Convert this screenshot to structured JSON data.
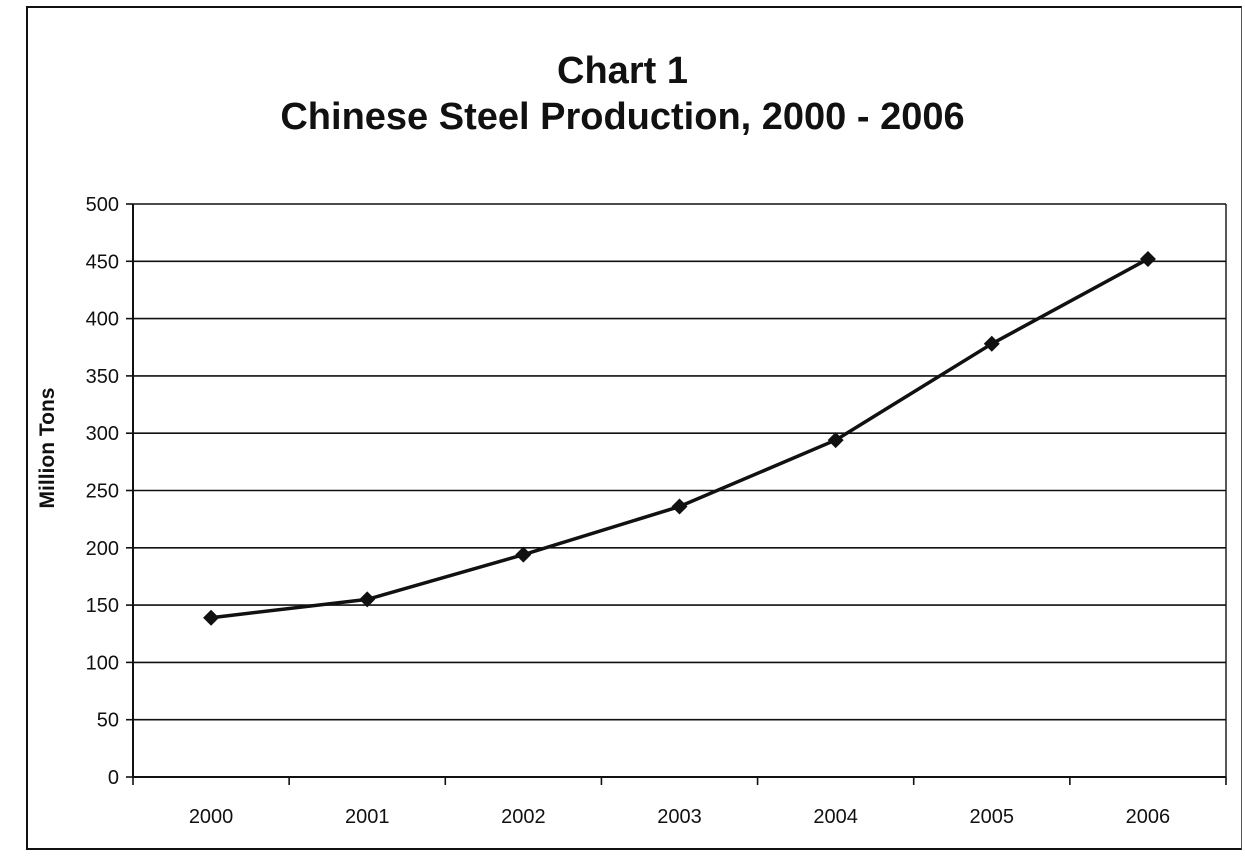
{
  "chart_data": {
    "type": "line",
    "title": "Chart 1",
    "subtitle": "Chinese Steel Production, 2000 - 2006",
    "xlabel": "",
    "ylabel": "Million Tons",
    "categories": [
      "2000",
      "2001",
      "2002",
      "2003",
      "2004",
      "2005",
      "2006"
    ],
    "series": [
      {
        "values": [
          139,
          155,
          194,
          236,
          294,
          378,
          452
        ]
      }
    ],
    "ylim": [
      0,
      500
    ],
    "yticks": [
      0,
      50,
      100,
      150,
      200,
      250,
      300,
      350,
      400,
      450,
      500
    ],
    "grid": true,
    "legend": "none",
    "colors": {
      "line": "#111111",
      "grid": "#111111",
      "background": "#ffffff"
    }
  }
}
